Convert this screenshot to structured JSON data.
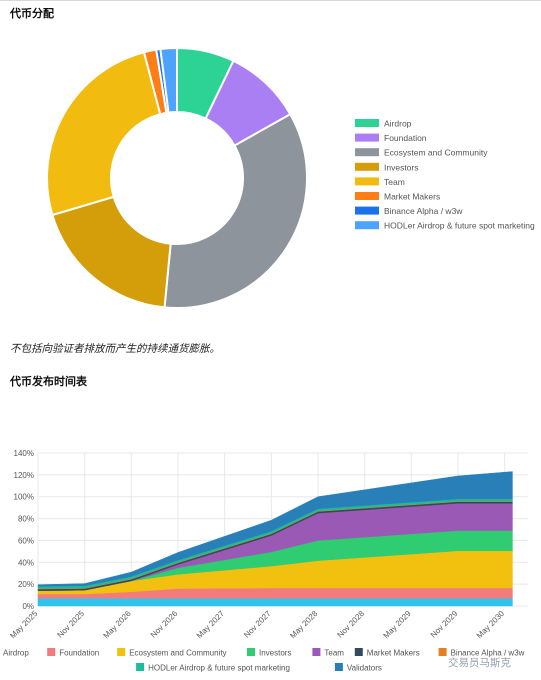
{
  "headings": {
    "distribution": "代币分配",
    "note": "不包括向验证者排放而产生的持续通货膨胀。",
    "schedule": "代币发布时间表"
  },
  "watermark": "交易员马斯克",
  "chart_data": [
    {
      "type": "pie",
      "subtype": "donut",
      "legend_position": "right",
      "categories": [
        "Airdrop",
        "Foundation",
        "Ecosystem and Community",
        "Investors",
        "Team",
        "Market Makers",
        "Binance Alpha / w3w",
        "HODLer Airdrop & future spot marketing"
      ],
      "values": [
        7,
        9.5,
        34,
        18.5,
        25,
        1.5,
        0.5,
        2
      ],
      "colors": [
        "#2dd295",
        "#a97ff3",
        "#8e949c",
        "#d39e0a",
        "#f2bb0f",
        "#fd7e14",
        "#1a73e8",
        "#4da3ff"
      ]
    },
    {
      "type": "area",
      "stacked": true,
      "legend_position": "bottom",
      "grid": true,
      "ylim": [
        0,
        140
      ],
      "yticks": [
        "0%",
        "20%",
        "40%",
        "60%",
        "80%",
        "100%",
        "120%",
        "140%"
      ],
      "xticks": [
        "May 2025",
        "Nov 2025",
        "May 2026",
        "Nov 2026",
        "May 2027",
        "Nov 2027",
        "May 2028",
        "Nov 2028",
        "May 2029",
        "Nov 2029",
        "May 2030"
      ],
      "x": [
        "May 2025",
        "Nov 2025",
        "May 2026",
        "Nov 2026",
        "Nov 2027",
        "May 2028",
        "Nov 2029",
        "Jun 2030"
      ],
      "series": [
        {
          "name": "Airdrop",
          "color": "#2ec4f0",
          "values": [
            7,
            7,
            7,
            7,
            7,
            7,
            7,
            7
          ]
        },
        {
          "name": "Foundation",
          "color": "#f47b7b",
          "values": [
            4,
            4,
            6,
            9,
            9.5,
            9.5,
            9.5,
            9.5
          ]
        },
        {
          "name": "Ecosystem and Community",
          "color": "#f2c00f",
          "values": [
            3,
            3.5,
            10,
            13,
            20,
            25,
            34,
            34
          ]
        },
        {
          "name": "Investors",
          "color": "#2fcc71",
          "values": [
            0,
            0,
            0,
            6,
            13,
            18.5,
            18.5,
            18.5
          ]
        },
        {
          "name": "Team",
          "color": "#9b59b6",
          "values": [
            0,
            0,
            0,
            3,
            15,
            25,
            25,
            25
          ]
        },
        {
          "name": "Market Makers",
          "color": "#34495e",
          "values": [
            1.5,
            1.5,
            1.5,
            1.5,
            1.5,
            1.5,
            1.5,
            1.5
          ]
        },
        {
          "name": "Binance Alpha / w3w",
          "color": "#e67e22",
          "values": [
            0.5,
            0.5,
            0.5,
            0.5,
            0.5,
            0.5,
            0.5,
            0.5
          ]
        },
        {
          "name": "HODLer Airdrop & future spot marketing",
          "color": "#1abc9c",
          "values": [
            2,
            2,
            2,
            2,
            2,
            2,
            2,
            2
          ]
        },
        {
          "name": "Validators",
          "color": "#2980b9",
          "values": [
            1.5,
            2,
            4,
            7,
            10,
            11,
            21,
            25
          ]
        }
      ]
    }
  ]
}
